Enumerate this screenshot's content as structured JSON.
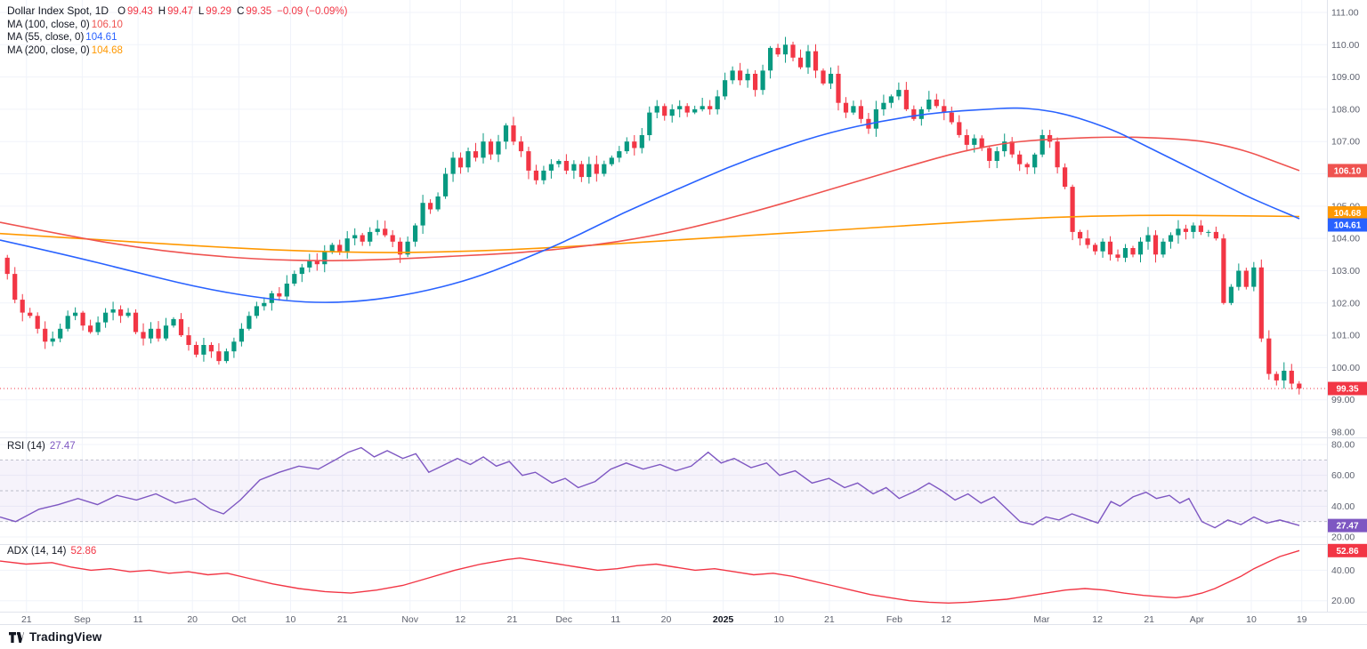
{
  "header": {
    "title": "Dollar Index Spot, 1D",
    "ohlc": [
      {
        "k": "O",
        "v": "99.43"
      },
      {
        "k": "H",
        "v": "99.47"
      },
      {
        "k": "L",
        "v": "99.29"
      },
      {
        "k": "C",
        "v": "99.35"
      }
    ],
    "change": "−0.09 (−0.09%)"
  },
  "ma_legend": [
    {
      "label": "MA (100, close, 0)",
      "value": "106.10",
      "color_key": "ma100"
    },
    {
      "label": "MA (55, close, 0)",
      "value": "104.61",
      "color_key": "ma55"
    },
    {
      "label": "MA (200, close, 0)",
      "value": "104.68",
      "color_key": "ma200"
    }
  ],
  "rsi_legend": {
    "label": "RSI (14)",
    "value": "27.47"
  },
  "adx_legend": {
    "label": "ADX (14, 14)",
    "value": "52.86"
  },
  "footer": {
    "brand": "TradingView"
  },
  "colors": {
    "up": "#089981",
    "down": "#f23645",
    "ma100": "#ef5350",
    "ma55": "#2962ff",
    "ma200": "#ff9800",
    "rsi": "#7e57c2",
    "adx": "#f23645",
    "grid": "#f0f3fa",
    "separator": "#e0e3eb"
  },
  "chart_data": {
    "type": "candlestick",
    "title": "Dollar Index Spot, 1D",
    "timeframe": "1D",
    "price_axis_range": [
      98,
      111
    ],
    "price_ticks": [
      111,
      110,
      109,
      108,
      107,
      106,
      105,
      104,
      103,
      102,
      101,
      100,
      99,
      98
    ],
    "last_candle": {
      "o": 99.43,
      "h": 99.47,
      "l": 99.29,
      "c": 99.35,
      "change": -0.09,
      "change_pct": -0.09
    },
    "last_price": 99.35,
    "time_labels": [
      {
        "t": "21",
        "x": 0.02
      },
      {
        "t": "Sep",
        "x": 0.062
      },
      {
        "t": "11",
        "x": 0.104
      },
      {
        "t": "20",
        "x": 0.145
      },
      {
        "t": "Oct",
        "x": 0.18
      },
      {
        "t": "10",
        "x": 0.219
      },
      {
        "t": "21",
        "x": 0.258
      },
      {
        "t": "Nov",
        "x": 0.309
      },
      {
        "t": "12",
        "x": 0.347
      },
      {
        "t": "21",
        "x": 0.386
      },
      {
        "t": "Dec",
        "x": 0.425
      },
      {
        "t": "11",
        "x": 0.464
      },
      {
        "t": "20",
        "x": 0.502
      },
      {
        "t": "2025",
        "x": 0.545,
        "bold": true
      },
      {
        "t": "10",
        "x": 0.587
      },
      {
        "t": "21",
        "x": 0.625
      },
      {
        "t": "Feb",
        "x": 0.674
      },
      {
        "t": "12",
        "x": 0.713
      },
      {
        "t": "Mar",
        "x": 0.785
      },
      {
        "t": "12",
        "x": 0.827
      },
      {
        "t": "21",
        "x": 0.866
      },
      {
        "t": "Apr",
        "x": 0.902
      },
      {
        "t": "10",
        "x": 0.943
      },
      {
        "t": "19",
        "x": 0.981
      }
    ],
    "candles": {
      "first_open": 103.4,
      "closes": [
        102.9,
        102.1,
        101.7,
        101.6,
        101.2,
        100.8,
        100.9,
        101.2,
        101.6,
        101.7,
        101.3,
        101.1,
        101.4,
        101.7,
        101.8,
        101.6,
        101.7,
        101.1,
        100.9,
        101.2,
        100.9,
        101.3,
        101.5,
        101.0,
        100.7,
        100.4,
        100.7,
        100.5,
        100.2,
        100.5,
        100.8,
        101.2,
        101.6,
        101.9,
        102.0,
        102.3,
        102.2,
        102.6,
        102.9,
        103.1,
        103.3,
        103.2,
        103.6,
        103.8,
        103.6,
        104.0,
        104.1,
        103.9,
        104.2,
        104.3,
        104.1,
        103.9,
        103.5,
        103.9,
        104.4,
        105.1,
        104.9,
        105.3,
        106.0,
        106.5,
        106.2,
        106.7,
        106.5,
        107.0,
        106.6,
        107.0,
        107.5,
        107.0,
        106.7,
        106.1,
        105.8,
        106.1,
        106.3,
        106.4,
        106.1,
        106.3,
        105.9,
        106.3,
        106.0,
        106.3,
        106.5,
        106.7,
        107.0,
        106.8,
        107.2,
        107.9,
        108.1,
        107.8,
        108.0,
        108.1,
        107.9,
        108.0,
        108.1,
        108.0,
        108.4,
        108.9,
        109.2,
        108.9,
        109.1,
        108.6,
        109.2,
        109.9,
        109.7,
        110.0,
        109.6,
        109.3,
        109.8,
        109.2,
        108.8,
        109.1,
        108.2,
        107.9,
        108.1,
        107.7,
        107.4,
        108.0,
        108.2,
        108.4,
        108.6,
        108.0,
        107.7,
        108.0,
        108.3,
        108.1,
        107.9,
        107.6,
        107.2,
        106.9,
        107.1,
        106.8,
        106.4,
        106.7,
        107.0,
        106.6,
        106.3,
        106.2,
        106.6,
        107.2,
        107.0,
        106.2,
        105.6,
        104.2,
        104.0,
        103.8,
        103.6,
        103.9,
        103.5,
        103.4,
        103.7,
        103.5,
        103.9,
        104.1,
        103.5,
        103.9,
        104.1,
        104.3,
        104.2,
        104.4,
        104.2,
        104.2,
        104.0,
        102.0,
        102.5,
        103.0,
        102.5,
        103.1,
        100.9,
        99.8,
        99.6,
        99.9,
        99.5,
        99.35
      ]
    },
    "overlays": {
      "ma100": {
        "name": "MA (100, close, 0)",
        "last": 106.1,
        "points": [
          [
            0,
            104.5
          ],
          [
            0.05,
            104.1
          ],
          [
            0.1,
            103.75
          ],
          [
            0.15,
            103.5
          ],
          [
            0.2,
            103.35
          ],
          [
            0.25,
            103.3
          ],
          [
            0.3,
            103.35
          ],
          [
            0.35,
            103.45
          ],
          [
            0.4,
            103.55
          ],
          [
            0.45,
            103.75
          ],
          [
            0.5,
            104.05
          ],
          [
            0.55,
            104.5
          ],
          [
            0.6,
            105.05
          ],
          [
            0.65,
            105.65
          ],
          [
            0.7,
            106.25
          ],
          [
            0.74,
            106.7
          ],
          [
            0.78,
            107.0
          ],
          [
            0.82,
            107.1
          ],
          [
            0.86,
            107.15
          ],
          [
            0.9,
            107.1
          ],
          [
            0.93,
            107.0
          ],
          [
            0.96,
            106.7
          ],
          [
            0.98,
            106.4
          ],
          [
            1,
            106.1
          ]
        ]
      },
      "ma55": {
        "name": "MA (55, close, 0)",
        "last": 104.61,
        "points": [
          [
            0,
            103.95
          ],
          [
            0.05,
            103.5
          ],
          [
            0.1,
            103.0
          ],
          [
            0.15,
            102.5
          ],
          [
            0.2,
            102.15
          ],
          [
            0.24,
            102.0
          ],
          [
            0.28,
            102.05
          ],
          [
            0.32,
            102.3
          ],
          [
            0.36,
            102.7
          ],
          [
            0.4,
            103.3
          ],
          [
            0.44,
            104.0
          ],
          [
            0.48,
            104.8
          ],
          [
            0.52,
            105.5
          ],
          [
            0.56,
            106.2
          ],
          [
            0.6,
            106.8
          ],
          [
            0.64,
            107.3
          ],
          [
            0.68,
            107.65
          ],
          [
            0.72,
            107.9
          ],
          [
            0.76,
            108.0
          ],
          [
            0.78,
            108.05
          ],
          [
            0.8,
            108.0
          ],
          [
            0.82,
            107.85
          ],
          [
            0.84,
            107.6
          ],
          [
            0.86,
            107.3
          ],
          [
            0.88,
            106.9
          ],
          [
            0.9,
            106.5
          ],
          [
            0.92,
            106.1
          ],
          [
            0.94,
            105.7
          ],
          [
            0.96,
            105.3
          ],
          [
            0.98,
            104.95
          ],
          [
            1,
            104.61
          ]
        ]
      },
      "ma200": {
        "name": "MA (200, close, 0)",
        "last": 104.68,
        "points": [
          [
            0,
            104.15
          ],
          [
            0.06,
            104.0
          ],
          [
            0.12,
            103.85
          ],
          [
            0.18,
            103.7
          ],
          [
            0.24,
            103.6
          ],
          [
            0.3,
            103.55
          ],
          [
            0.36,
            103.6
          ],
          [
            0.42,
            103.7
          ],
          [
            0.48,
            103.85
          ],
          [
            0.54,
            104.0
          ],
          [
            0.6,
            104.15
          ],
          [
            0.66,
            104.3
          ],
          [
            0.72,
            104.45
          ],
          [
            0.78,
            104.6
          ],
          [
            0.84,
            104.7
          ],
          [
            0.9,
            104.72
          ],
          [
            0.95,
            104.7
          ],
          [
            1,
            104.68
          ]
        ]
      }
    },
    "rsi": {
      "name": "RSI (14)",
      "last": 27.47,
      "upper": 70,
      "mid": 50,
      "lower": 30,
      "ticks": [
        80,
        60,
        40,
        20
      ],
      "points": [
        [
          0,
          33
        ],
        [
          0.012,
          30
        ],
        [
          0.03,
          38
        ],
        [
          0.045,
          41
        ],
        [
          0.06,
          45
        ],
        [
          0.075,
          41
        ],
        [
          0.09,
          47
        ],
        [
          0.105,
          44
        ],
        [
          0.12,
          48
        ],
        [
          0.135,
          42
        ],
        [
          0.15,
          45
        ],
        [
          0.162,
          38
        ],
        [
          0.172,
          35
        ],
        [
          0.185,
          44
        ],
        [
          0.2,
          57
        ],
        [
          0.215,
          62
        ],
        [
          0.23,
          66
        ],
        [
          0.245,
          64
        ],
        [
          0.258,
          70
        ],
        [
          0.268,
          75
        ],
        [
          0.278,
          78
        ],
        [
          0.288,
          72
        ],
        [
          0.298,
          76
        ],
        [
          0.31,
          71
        ],
        [
          0.32,
          74
        ],
        [
          0.33,
          62
        ],
        [
          0.34,
          66
        ],
        [
          0.352,
          71
        ],
        [
          0.362,
          67
        ],
        [
          0.372,
          72
        ],
        [
          0.382,
          66
        ],
        [
          0.392,
          69
        ],
        [
          0.402,
          60
        ],
        [
          0.412,
          62
        ],
        [
          0.425,
          55
        ],
        [
          0.435,
          58
        ],
        [
          0.445,
          52
        ],
        [
          0.458,
          56
        ],
        [
          0.47,
          64
        ],
        [
          0.482,
          68
        ],
        [
          0.495,
          64
        ],
        [
          0.508,
          67
        ],
        [
          0.52,
          63
        ],
        [
          0.532,
          66
        ],
        [
          0.545,
          75
        ],
        [
          0.555,
          68
        ],
        [
          0.565,
          71
        ],
        [
          0.578,
          65
        ],
        [
          0.59,
          68
        ],
        [
          0.6,
          60
        ],
        [
          0.612,
          63
        ],
        [
          0.625,
          55
        ],
        [
          0.638,
          58
        ],
        [
          0.65,
          52
        ],
        [
          0.66,
          55
        ],
        [
          0.672,
          48
        ],
        [
          0.682,
          52
        ],
        [
          0.692,
          45
        ],
        [
          0.705,
          50
        ],
        [
          0.715,
          55
        ],
        [
          0.725,
          50
        ],
        [
          0.735,
          44
        ],
        [
          0.745,
          48
        ],
        [
          0.755,
          42
        ],
        [
          0.765,
          46
        ],
        [
          0.775,
          38
        ],
        [
          0.785,
          30
        ],
        [
          0.795,
          28
        ],
        [
          0.805,
          33
        ],
        [
          0.815,
          31
        ],
        [
          0.825,
          35
        ],
        [
          0.835,
          32
        ],
        [
          0.845,
          29
        ],
        [
          0.855,
          43
        ],
        [
          0.862,
          40
        ],
        [
          0.872,
          46
        ],
        [
          0.882,
          49
        ],
        [
          0.89,
          45
        ],
        [
          0.9,
          47
        ],
        [
          0.908,
          42
        ],
        [
          0.915,
          45
        ],
        [
          0.925,
          30
        ],
        [
          0.935,
          26
        ],
        [
          0.945,
          31
        ],
        [
          0.955,
          28
        ],
        [
          0.965,
          33
        ],
        [
          0.975,
          29
        ],
        [
          0.985,
          31
        ],
        [
          1,
          27.47
        ]
      ]
    },
    "adx": {
      "name": "ADX (14, 14)",
      "last": 52.86,
      "ticks": [
        40,
        20
      ],
      "points": [
        [
          0,
          46
        ],
        [
          0.02,
          44
        ],
        [
          0.04,
          45
        ],
        [
          0.055,
          42
        ],
        [
          0.07,
          40
        ],
        [
          0.085,
          41
        ],
        [
          0.1,
          39
        ],
        [
          0.115,
          40
        ],
        [
          0.13,
          38
        ],
        [
          0.145,
          39
        ],
        [
          0.16,
          37
        ],
        [
          0.175,
          38
        ],
        [
          0.19,
          35
        ],
        [
          0.21,
          31
        ],
        [
          0.23,
          28
        ],
        [
          0.25,
          26
        ],
        [
          0.27,
          25
        ],
        [
          0.29,
          27
        ],
        [
          0.31,
          30
        ],
        [
          0.33,
          35
        ],
        [
          0.35,
          40
        ],
        [
          0.37,
          44
        ],
        [
          0.39,
          47
        ],
        [
          0.4,
          48
        ],
        [
          0.415,
          46
        ],
        [
          0.43,
          44
        ],
        [
          0.445,
          42
        ],
        [
          0.46,
          40
        ],
        [
          0.475,
          41
        ],
        [
          0.49,
          43
        ],
        [
          0.505,
          44
        ],
        [
          0.52,
          42
        ],
        [
          0.535,
          40
        ],
        [
          0.55,
          41
        ],
        [
          0.565,
          39
        ],
        [
          0.58,
          37
        ],
        [
          0.595,
          38
        ],
        [
          0.61,
          36
        ],
        [
          0.625,
          33
        ],
        [
          0.64,
          30
        ],
        [
          0.655,
          27
        ],
        [
          0.67,
          24
        ],
        [
          0.685,
          22
        ],
        [
          0.7,
          20
        ],
        [
          0.715,
          19
        ],
        [
          0.73,
          18.5
        ],
        [
          0.745,
          19
        ],
        [
          0.76,
          20
        ],
        [
          0.775,
          21
        ],
        [
          0.79,
          23
        ],
        [
          0.805,
          25
        ],
        [
          0.82,
          27
        ],
        [
          0.835,
          28
        ],
        [
          0.85,
          27
        ],
        [
          0.865,
          25
        ],
        [
          0.88,
          23.5
        ],
        [
          0.895,
          22.5
        ],
        [
          0.905,
          22
        ],
        [
          0.915,
          23
        ],
        [
          0.925,
          25
        ],
        [
          0.935,
          28
        ],
        [
          0.945,
          32
        ],
        [
          0.955,
          36
        ],
        [
          0.965,
          41
        ],
        [
          0.975,
          45
        ],
        [
          0.985,
          49
        ],
        [
          1,
          52.86
        ]
      ]
    }
  }
}
